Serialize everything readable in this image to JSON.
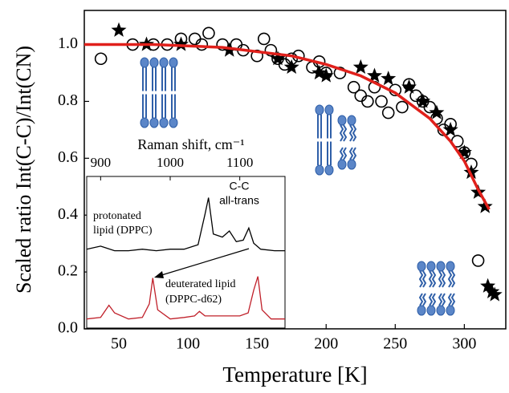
{
  "chart_data": [
    {
      "type": "scatter",
      "xlabel": "Temperature [K]",
      "ylabel": "Scaled ratio Int(C-C)/Int(CN)",
      "xlim": [
        25,
        330
      ],
      "ylim": [
        0,
        1.12
      ],
      "xticks": [
        50,
        100,
        150,
        200,
        250,
        300
      ],
      "yticks": [
        {
          "value": 0,
          "label": "0.0"
        },
        0.2,
        0.4,
        0.6,
        0.8,
        {
          "value": 1,
          "label": "1.0"
        }
      ],
      "series": [
        {
          "marker": "circle",
          "color": "#000000",
          "x": [
            37,
            60,
            75,
            85,
            95,
            105,
            110,
            115,
            125,
            135,
            140,
            150,
            155,
            160,
            165,
            170,
            175,
            180,
            190,
            195,
            200,
            210,
            220,
            225,
            230,
            235,
            240,
            245,
            250,
            255,
            260,
            265,
            270,
            275,
            280,
            285,
            290,
            295,
            300,
            305,
            310
          ],
          "values": [
            0.95,
            1.0,
            1.0,
            1.0,
            1.02,
            1.02,
            1.0,
            1.04,
            1.0,
            1.0,
            0.98,
            0.96,
            1.02,
            0.98,
            0.95,
            0.93,
            0.95,
            0.96,
            0.92,
            0.94,
            0.9,
            0.9,
            0.85,
            0.82,
            0.8,
            0.85,
            0.8,
            0.76,
            0.84,
            0.78,
            0.86,
            0.82,
            0.8,
            0.78,
            0.74,
            0.7,
            0.72,
            0.66,
            0.62,
            0.58,
            0.24
          ]
        },
        {
          "marker": "star",
          "color": "#000000",
          "x": [
            50,
            70,
            95,
            130,
            165,
            175,
            195,
            200,
            225,
            235,
            245,
            260,
            270,
            280,
            290,
            300,
            305,
            310,
            315,
            317,
            320,
            322
          ],
          "values": [
            1.05,
            1.0,
            1.0,
            0.98,
            0.95,
            0.92,
            0.9,
            0.89,
            0.92,
            0.89,
            0.88,
            0.85,
            0.8,
            0.76,
            0.7,
            0.62,
            0.55,
            0.48,
            0.43,
            0.15,
            0.13,
            0.12
          ]
        },
        {
          "marker": "line",
          "color": "#e0201b",
          "x": [
            25,
            75,
            125,
            175,
            200,
            225,
            250,
            275,
            290,
            300,
            310,
            318
          ],
          "values": [
            1.0,
            1.0,
            0.99,
            0.96,
            0.93,
            0.89,
            0.83,
            0.74,
            0.66,
            0.59,
            0.49,
            0.42
          ]
        }
      ]
    },
    {
      "type": "line",
      "xlabel": "Raman shift, cm⁻¹",
      "xlim": [
        880,
        1165
      ],
      "ylim": [
        0,
        1
      ],
      "xticks": [
        900,
        1000,
        1100
      ],
      "annotations": [
        "C-C",
        "all-trans",
        "protonated",
        "lipid (DPPC)",
        "deuterated lipid",
        "(DPPC-d62)"
      ],
      "series": [
        {
          "color": "#000000",
          "x": [
            880,
            900,
            920,
            940,
            960,
            980,
            1000,
            1020,
            1040,
            1050,
            1055,
            1062,
            1075,
            1085,
            1095,
            1105,
            1113,
            1120,
            1130,
            1150,
            1165
          ],
          "values": [
            0.52,
            0.54,
            0.51,
            0.51,
            0.52,
            0.51,
            0.52,
            0.52,
            0.55,
            0.75,
            0.86,
            0.62,
            0.6,
            0.64,
            0.57,
            0.58,
            0.66,
            0.56,
            0.52,
            0.51,
            0.51
          ]
        },
        {
          "color": "#c0202a",
          "x": [
            880,
            900,
            912,
            920,
            940,
            960,
            970,
            975,
            982,
            1000,
            1020,
            1035,
            1042,
            1050,
            1070,
            1090,
            1100,
            1112,
            1120,
            1126,
            1132,
            1145,
            1165
          ],
          "values": [
            0.06,
            0.07,
            0.15,
            0.1,
            0.06,
            0.07,
            0.16,
            0.33,
            0.12,
            0.06,
            0.07,
            0.08,
            0.11,
            0.08,
            0.08,
            0.08,
            0.08,
            0.1,
            0.25,
            0.34,
            0.12,
            0.06,
            0.06
          ]
        }
      ]
    }
  ]
}
